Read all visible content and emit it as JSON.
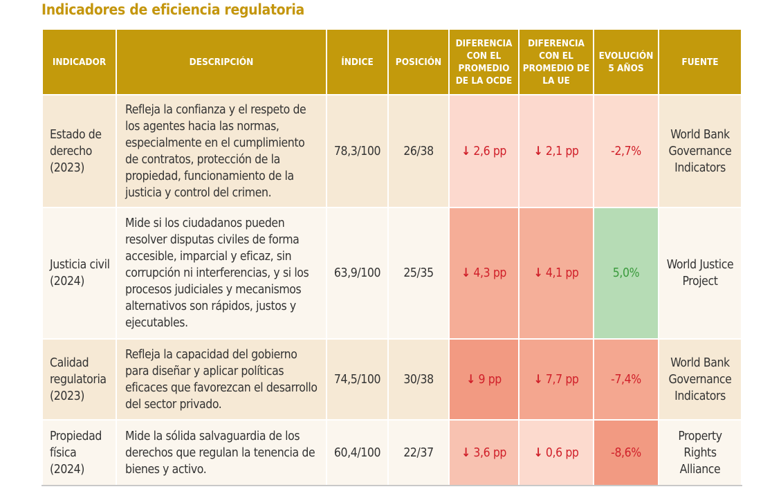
{
  "title": "Indicadores de eficiencia regulatoria",
  "headers": [
    "INDICADOR",
    "DESCRIPCIÓN",
    "ÍNDICE",
    "POSICIÓN",
    "DIFERENCIA CON EL PROMEDIO DE LA OCDE",
    "DIFERENCIA CON EL PROMEDIO DE LA UE",
    "EVOLUCIÓN 5 AÑOS",
    "FUENTE"
  ],
  "colors": {
    "header": "#c39a0c",
    "title": "#c4960e",
    "negative_text": "#d0202a",
    "positive_text": "#3a9a3c"
  },
  "rows": [
    {
      "indicador": "Estado de derecho (2023)",
      "descripcion": "Refleja la confianza y el respeto de los agentes hacia las normas, especialmente en el cumplimiento de contratos, protección de la propiedad, funcionamiento de la justicia y control del crimen.",
      "indice": "78,3/100",
      "posicion": "26/38",
      "ocde": "2,6 pp",
      "ue": "2,1 pp",
      "evolucion": "-2,7%",
      "fuente": "World Bank Governance Indicators",
      "ocde_color": "#fcd9ce",
      "ue_color": "#fcd9ce",
      "evol_color": "#fcdccf"
    },
    {
      "indicador": "Justicia civil (2024)",
      "descripcion": "Mide si los ciudadanos pueden resolver disputas civiles de forma accesible, imparcial y eficaz, sin corrupción ni interferencias, y si los procesos judiciales y mecanismos alternativos son rápidos, justos y ejecutables.",
      "indice": "63,9/100",
      "posicion": "25/35",
      "ocde": "4,3 pp",
      "ue": "4,1 pp",
      "evolucion": "5,0%",
      "fuente": "World Justice Project",
      "ocde_color": "#f5ad97",
      "ue_color": "#f5af99",
      "evol_color": "#b6dcb5"
    },
    {
      "indicador": "Calidad regulatoria (2023)",
      "descripcion": "Refleja la capacidad del gobierno para diseñar y aplicar políticas eficaces que favorezcan el desarrollo del sector privado.",
      "indice": "74,5/100",
      "posicion": "30/38",
      "ocde": "9 pp",
      "ue": "7,7 pp",
      "evolucion": "-7,4%",
      "fuente": "World Bank Governance Indicators",
      "ocde_color": "#f29a82",
      "ue_color": "#f4a68f",
      "evol_color": "#f4a790"
    },
    {
      "indicador": "Propiedad física (2024)",
      "descripcion": "Mide la sólida salvaguardia de los derechos que regulan la tenencia de bienes y activo.",
      "indice": "60,4/100",
      "posicion": "22/37",
      "ocde": "3,6 pp",
      "ue": "0,6 pp",
      "evolucion": "-8,6%",
      "fuente": "Property Rights Alliance",
      "ocde_color": "#f8c2b1",
      "ue_color": "#fcdace",
      "evol_color": "#f29a82"
    }
  ],
  "down_arrow": "↓"
}
